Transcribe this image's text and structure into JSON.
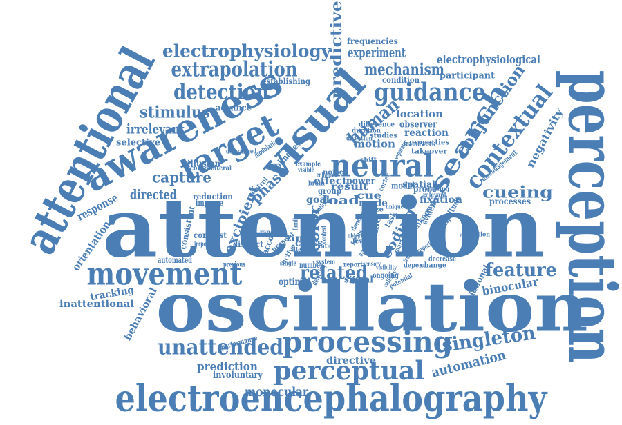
{
  "color": "#4a7eb5",
  "words": [
    {
      "text": "attention"
    },
    {
      "text": "oscillation"
    },
    {
      "text": "perception"
    },
    {
      "text": "electroencephalography"
    },
    {
      "text": "attentional"
    },
    {
      "text": "awareness"
    },
    {
      "text": "visual"
    },
    {
      "text": "processing"
    },
    {
      "text": "movement"
    },
    {
      "text": "neural"
    },
    {
      "text": "target"
    },
    {
      "text": "perceptual"
    },
    {
      "text": "search"
    },
    {
      "text": "contextual"
    },
    {
      "text": "guidance"
    },
    {
      "text": "detection"
    },
    {
      "text": "extrapolation"
    },
    {
      "text": "electrophysiology"
    },
    {
      "text": "unattended"
    },
    {
      "text": "predictive"
    },
    {
      "text": "singleton"
    },
    {
      "text": "feature"
    },
    {
      "text": "cueing"
    },
    {
      "text": "human"
    },
    {
      "text": "conjunction"
    },
    {
      "text": "mechanism"
    },
    {
      "text": "stimulus"
    },
    {
      "text": "experiment"
    },
    {
      "text": "related"
    },
    {
      "text": "electrophysiological"
    },
    {
      "text": "automation"
    },
    {
      "text": "capture"
    },
    {
      "text": "directed"
    },
    {
      "text": "irrelevant"
    },
    {
      "text": "phase"
    },
    {
      "text": "excipient"
    },
    {
      "text": "color"
    },
    {
      "text": "coding"
    },
    {
      "text": "response"
    },
    {
      "text": "orientation"
    },
    {
      "text": "behavioral"
    },
    {
      "text": "monocular"
    },
    {
      "text": "prediction"
    },
    {
      "text": "involuntary"
    },
    {
      "text": "directive"
    },
    {
      "text": "inattentional"
    },
    {
      "text": "tracking"
    },
    {
      "text": "binocular"
    },
    {
      "text": "negativity"
    },
    {
      "text": "participant"
    },
    {
      "text": "location"
    },
    {
      "text": "advance"
    },
    {
      "text": "selective"
    },
    {
      "text": "motion"
    },
    {
      "text": "reaction"
    },
    {
      "text": "observer"
    },
    {
      "text": "condition"
    },
    {
      "text": "frequencies"
    },
    {
      "text": "load"
    },
    {
      "text": "goal"
    },
    {
      "text": "result"
    },
    {
      "text": "spatial"
    },
    {
      "text": "power"
    },
    {
      "text": "cue"
    },
    {
      "text": "mode"
    },
    {
      "text": "modal"
    },
    {
      "text": "fixation"
    },
    {
      "text": "probe"
    },
    {
      "text": "effect"
    },
    {
      "text": "group"
    },
    {
      "text": "blindness"
    },
    {
      "text": "illusion"
    },
    {
      "text": "establishing"
    },
    {
      "text": "processes"
    },
    {
      "text": "amplitude"
    },
    {
      "text": "relational"
    },
    {
      "text": "caffeine"
    },
    {
      "text": "optimal"
    },
    {
      "text": "signal"
    },
    {
      "text": "time"
    },
    {
      "text": "cross"
    },
    {
      "text": "account"
    },
    {
      "text": "task"
    },
    {
      "text": "contrast"
    },
    {
      "text": "consistent"
    },
    {
      "text": "automated"
    },
    {
      "text": "reduction"
    },
    {
      "text": "improve"
    },
    {
      "text": "distinct"
    },
    {
      "text": "previous"
    },
    {
      "text": "number"
    },
    {
      "text": "detecting"
    },
    {
      "text": "report"
    },
    {
      "text": "ongoing"
    },
    {
      "text": "difference"
    },
    {
      "text": "duration"
    },
    {
      "text": "studies"
    },
    {
      "text": "properties"
    },
    {
      "text": "takeover"
    },
    {
      "text": "framework"
    },
    {
      "text": "disengagement"
    },
    {
      "text": "determined"
    },
    {
      "text": "modulation"
    },
    {
      "text": "contralateral"
    },
    {
      "text": "unknown"
    },
    {
      "text": "evidence"
    },
    {
      "text": "allocation"
    },
    {
      "text": "decrease"
    },
    {
      "text": "depend"
    },
    {
      "text": "change"
    },
    {
      "text": "performance"
    },
    {
      "text": "important"
    },
    {
      "text": "present"
    },
    {
      "text": "range"
    },
    {
      "text": "ratio"
    },
    {
      "text": "sampling"
    },
    {
      "text": "relevant"
    },
    {
      "text": "direction"
    },
    {
      "text": "active"
    },
    {
      "text": "potential"
    },
    {
      "text": "system"
    },
    {
      "text": "context"
    },
    {
      "text": "validity"
    },
    {
      "text": "marker"
    },
    {
      "text": "temporal"
    },
    {
      "text": "sensory"
    },
    {
      "text": "repetition"
    },
    {
      "text": "size"
    },
    {
      "text": "role"
    },
    {
      "text": "brain"
    },
    {
      "text": "field"
    },
    {
      "text": "unique"
    },
    {
      "text": "parietal"
    },
    {
      "text": "saccadic"
    },
    {
      "text": "control"
    },
    {
      "text": "noise"
    },
    {
      "text": "single"
    },
    {
      "text": "visible"
    },
    {
      "text": "domain"
    },
    {
      "text": "object"
    },
    {
      "text": "attend"
    },
    {
      "text": "family"
    },
    {
      "text": "enhanced"
    },
    {
      "text": "example"
    },
    {
      "text": "shift"
    },
    {
      "text": "array"
    },
    {
      "text": "dynamic"
    },
    {
      "text": "focus"
    },
    {
      "text": "level"
    },
    {
      "text": "cortex"
    },
    {
      "text": "separate"
    },
    {
      "text": "visibility"
    },
    {
      "text": "conscious"
    },
    {
      "text": "display"
    }
  ]
}
